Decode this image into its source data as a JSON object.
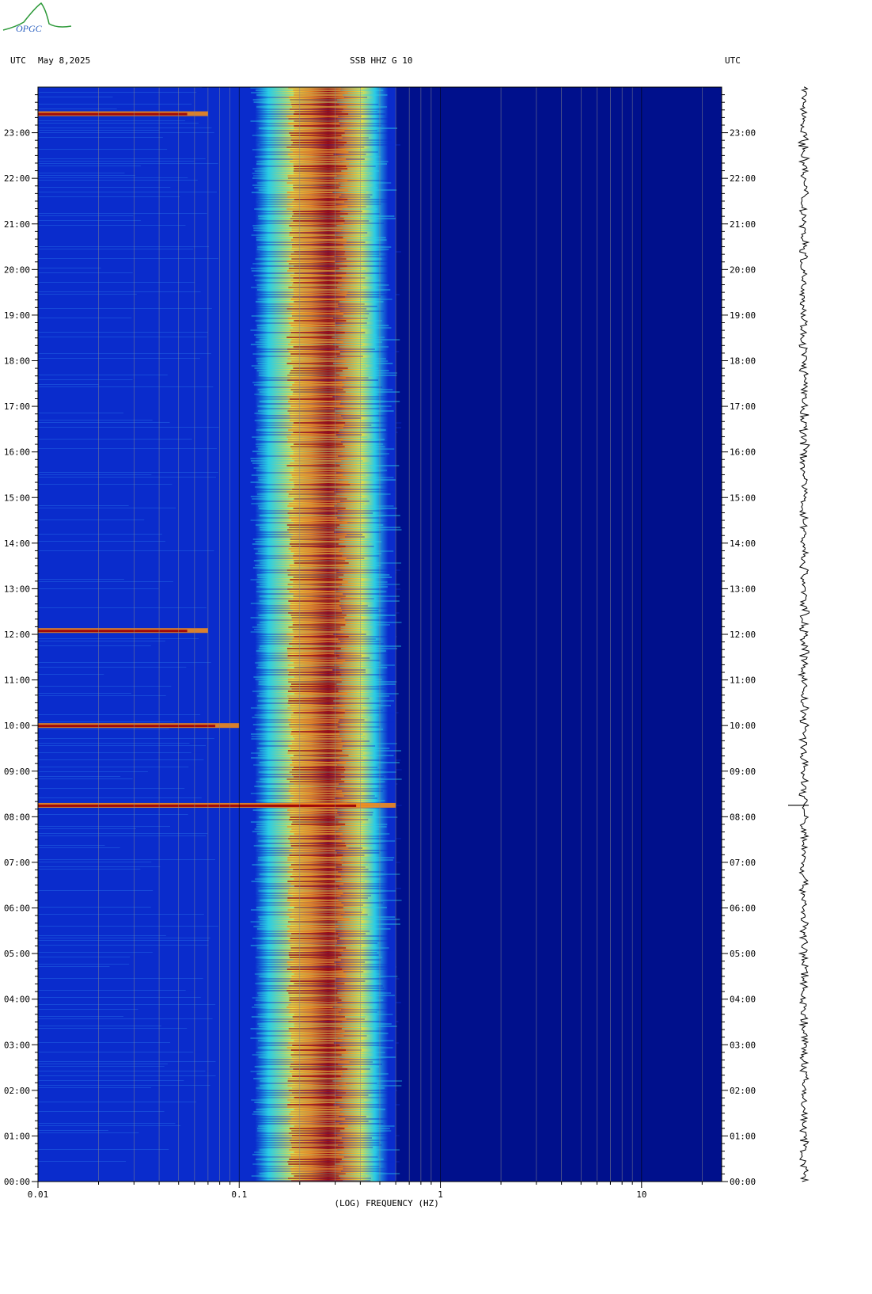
{
  "header": {
    "left_utc": "UTC",
    "date": "May 8,2025",
    "station": "SSB HHZ G 10",
    "right_utc": "UTC"
  },
  "logo": {
    "text": "OPGC"
  },
  "chart_data": {
    "type": "heatmap",
    "title": "SSB HHZ G 10",
    "xlabel": "(LOG) FREQUENCY (HZ)",
    "x_scale": "log",
    "xlim": [
      0.01,
      25
    ],
    "x_ticks": [
      {
        "value": 0.01,
        "label": "0.01"
      },
      {
        "value": 0.1,
        "label": "0.1"
      },
      {
        "value": 1,
        "label": "1"
      },
      {
        "value": 10,
        "label": "10"
      }
    ],
    "ylabel_left": "UTC",
    "ylabel_right": "UTC",
    "y_unit": "hours UTC",
    "ylim": [
      0,
      24
    ],
    "y_ticks": [
      "00:00",
      "01:00",
      "02:00",
      "03:00",
      "04:00",
      "05:00",
      "06:00",
      "07:00",
      "08:00",
      "09:00",
      "10:00",
      "11:00",
      "12:00",
      "13:00",
      "14:00",
      "15:00",
      "16:00",
      "17:00",
      "18:00",
      "19:00",
      "20:00",
      "21:00",
      "22:00",
      "23:00"
    ],
    "colors": {
      "background": "#00108c",
      "low": "#0a2ccc",
      "mid": "#2bd3e6",
      "high": "#f6e63a",
      "peak": "#f08a1c",
      "max": "#a00a0a"
    },
    "energy_band_hz": [
      0.12,
      0.55
    ],
    "peak_band_hz": [
      0.18,
      0.32
    ],
    "events": [
      {
        "time_utc": "10:00",
        "max_freq_hz": 0.1
      },
      {
        "time_utc": "12:05",
        "max_freq_hz": 0.07
      },
      {
        "time_utc": "23:25",
        "max_freq_hz": 0.07
      },
      {
        "time_utc": "08:15",
        "max_freq_hz": 0.6
      }
    ]
  }
}
